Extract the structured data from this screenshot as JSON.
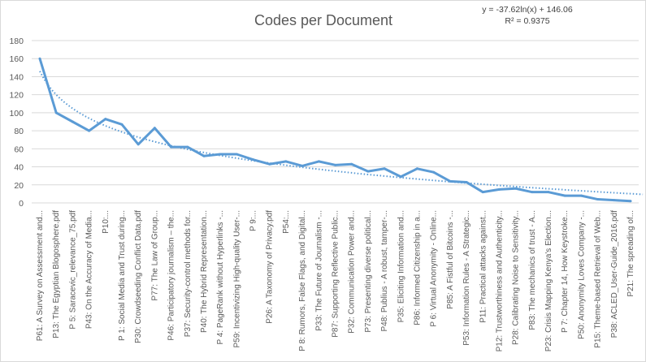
{
  "chart_data": {
    "type": "line",
    "title": "Codes per Document",
    "xlabel": "",
    "ylabel": "",
    "ylim": [
      0,
      180
    ],
    "yticks": [
      0,
      20,
      40,
      60,
      80,
      100,
      120,
      140,
      160,
      180
    ],
    "grid": true,
    "legend": "none",
    "series_color": "#5B9BD5",
    "categories": [
      "P61: A Survey on Assessment and...",
      "P13: The Egyptian Blogosphere.pdf",
      "P 5: Saracevic_relevance_75.pdf",
      "P43: On the Accuracy of Media...",
      "P10:...",
      "P 1: Social Media and Trust during...",
      "P30: Crowdseeding Conflict Data.pdf",
      "P77: The Law of Group...",
      "P46: Participatory journalism – the...",
      "P37: Security-control methods for...",
      "P40: The Hybrid Representation...",
      "P 4: PageRank without Hyperlinks -...",
      "P59: Incentivizing High-quality User-...",
      "P 9:...",
      "P26: A Taxonomy of Privacy.pdf",
      "P54:...",
      "P 8: Rumors, False Flags, and Digital...",
      "P33: The Future of Journalism -...",
      "P87: Supporting Reflective Public...",
      "P32: Communication Power and...",
      "P73: Presenting diverse political...",
      "P48: Publius - A robust, tamper-...",
      "P35: Eliciting Information and...",
      "P86: Informed Citizenship in a...",
      "P 6: Virtual Anonymity - Online...",
      "P85: A Fistful of Bitcoins -...",
      "P53: Information Rules - A Strategic...",
      "P11: Practical attacks against...",
      "P12: Trustworthiness and Authenticity...",
      "P28: Calibrating Noise to Sensitivity...",
      "P83: The mechanics of trust - A...",
      "P23: Crisis Mapping Kenya's Election...",
      "P 7: Chapter 14, How Keystroke...",
      "P50: Anonymity Loves Company -...",
      "P15: Theme-based Retrieval of Web...",
      "P38: ACLED_User-Guide_2016.pdf",
      "P21: The spreading of..."
    ],
    "series": [
      {
        "values": [
          160,
          100,
          90,
          80,
          93,
          87,
          65,
          83,
          62,
          62,
          52,
          54,
          54,
          48,
          43,
          46,
          41,
          46,
          42,
          43,
          35,
          38,
          29,
          38,
          34,
          24,
          23,
          12,
          15,
          16,
          12,
          12,
          8,
          8,
          4,
          3,
          2
        ]
      }
    ],
    "trendline": {
      "type": "logarithmic",
      "a": -37.62,
      "b": 146.06,
      "style": "dotted",
      "equation": "y = -37.62ln(x) + 146.06",
      "r_squared": "R² = 0.9375"
    }
  }
}
